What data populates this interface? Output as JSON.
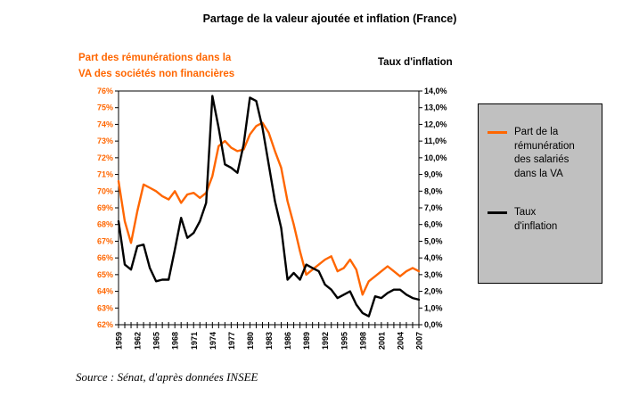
{
  "title": "Partage de la valeur ajoutée et inflation (France)",
  "left_axis_title": {
    "line1": "Part  des rémunérations dans la",
    "line2": "VA des sociétés non financières"
  },
  "right_axis_title": "Taux d'inflation",
  "legend": {
    "items": [
      {
        "label": "Part de la rémunération des salariés dans la VA"
      },
      {
        "label": "Taux d'inflation"
      }
    ]
  },
  "source": "Source : Sénat,  d'après données INSEE",
  "colors": {
    "wage_share": "#FF6600",
    "inflation": "#000000",
    "legend_bg": "#C0C0C0",
    "plot_border": "#000000"
  },
  "chart_data": {
    "type": "line",
    "x": {
      "start": 1959,
      "end": 2007,
      "label_step": 3,
      "tick_labels": [
        "1959",
        "1962",
        "1965",
        "1968",
        "1971",
        "1974",
        "1977",
        "1980",
        "1983",
        "1986",
        "1989",
        "1992",
        "1995",
        "1998",
        "2001",
        "2004",
        "2007"
      ]
    },
    "left_axis": {
      "min": 62,
      "max": 76,
      "ticks": [
        "62%",
        "63%",
        "64%",
        "65%",
        "66%",
        "67%",
        "68%",
        "69%",
        "70%",
        "71%",
        "72%",
        "73%",
        "74%",
        "75%",
        "76%"
      ]
    },
    "right_axis": {
      "min": 0,
      "max": 14,
      "ticks": [
        "0,0%",
        "1,0%",
        "2,0%",
        "3,0%",
        "4,0%",
        "5,0%",
        "6,0%",
        "7,0%",
        "8,0%",
        "9,0%",
        "10,0%",
        "11,0%",
        "12,0%",
        "13,0%",
        "14,0%"
      ]
    },
    "series": [
      {
        "name": "Part de la rémunération des salariés dans la VA",
        "axis": "left",
        "color": "#FF6600",
        "data_name": "wage-share-line",
        "values": [
          70.6,
          68.2,
          66.9,
          68.8,
          70.4,
          70.2,
          70.0,
          69.7,
          69.5,
          70.0,
          69.3,
          69.8,
          69.9,
          69.6,
          69.9,
          70.9,
          72.7,
          73.0,
          72.6,
          72.4,
          72.5,
          73.4,
          73.9,
          74.1,
          73.5,
          72.4,
          71.4,
          69.4,
          68.0,
          66.4,
          65.0,
          65.3,
          65.6,
          65.9,
          66.1,
          65.2,
          65.4,
          65.9,
          65.3,
          63.8,
          64.6,
          64.9,
          65.2,
          65.5,
          65.2,
          64.9,
          65.2,
          65.4,
          65.2
        ]
      },
      {
        "name": "Taux d'inflation",
        "axis": "right",
        "color": "#000000",
        "data_name": "inflation-line",
        "values": [
          6.2,
          3.6,
          3.3,
          4.7,
          4.8,
          3.4,
          2.6,
          2.7,
          2.7,
          4.5,
          6.4,
          5.2,
          5.5,
          6.2,
          7.3,
          13.7,
          11.8,
          9.6,
          9.4,
          9.1,
          10.8,
          13.6,
          13.4,
          11.8,
          9.6,
          7.4,
          5.8,
          2.7,
          3.1,
          2.7,
          3.6,
          3.4,
          3.2,
          2.4,
          2.1,
          1.6,
          1.8,
          2.0,
          1.2,
          0.7,
          0.5,
          1.7,
          1.6,
          1.9,
          2.1,
          2.1,
          1.8,
          1.6,
          1.5
        ]
      }
    ]
  }
}
